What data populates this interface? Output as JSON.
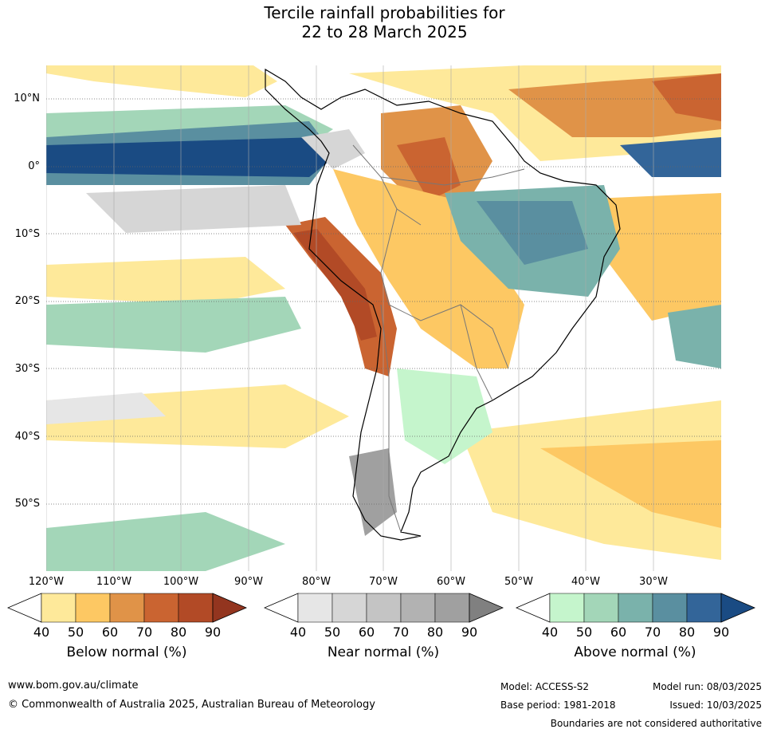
{
  "title": {
    "line1": "Tercile rainfall probabilities for",
    "line2": "22 to 28 March 2025"
  },
  "lat_labels": [
    "10°N",
    "0°",
    "10°S",
    "20°S",
    "30°S",
    "40°S",
    "50°S"
  ],
  "lon_labels": [
    "120°W",
    "110°W",
    "100°W",
    "90°W",
    "80°W",
    "70°W",
    "60°W",
    "50°W",
    "40°W",
    "30°W"
  ],
  "colorbars": [
    {
      "title": "Below normal (%)",
      "ticks": [
        "40",
        "50",
        "60",
        "70",
        "80",
        "90"
      ],
      "colors": [
        "#fee99a",
        "#fdc863",
        "#e09348",
        "#ca6431",
        "#b24a26",
        "#93351f"
      ]
    },
    {
      "title": "Near normal (%)",
      "ticks": [
        "40",
        "50",
        "60",
        "70",
        "80",
        "90"
      ],
      "colors": [
        "#e6e6e6",
        "#d6d6d6",
        "#c4c4c4",
        "#b2b2b2",
        "#a0a0a0",
        "#808080"
      ]
    },
    {
      "title": "Above normal (%)",
      "ticks": [
        "40",
        "50",
        "60",
        "70",
        "80",
        "90"
      ],
      "colors": [
        "#c5f5cc",
        "#a3d6b8",
        "#7ab2ab",
        "#5a8fa0",
        "#336599",
        "#1a4b83"
      ]
    }
  ],
  "footer": {
    "url": "www.bom.gov.au/climate",
    "copyright": "© Commonwealth of Australia 2025, Australian Bureau of Meteorology",
    "model": "Model: ACCESS-S2",
    "base_period": "Base period: 1981-2018",
    "model_run": "Model run: 08/03/2025",
    "issued": "Issued: 10/03/2025",
    "disclaimer": "Boundaries are not considered authoritative"
  }
}
